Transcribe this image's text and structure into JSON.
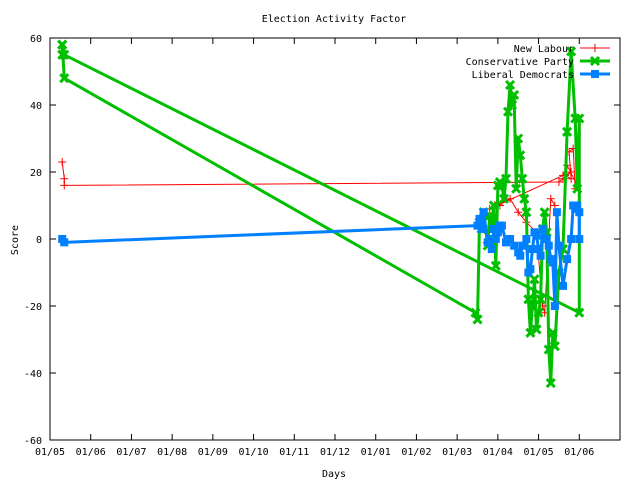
{
  "chart_data": {
    "type": "line",
    "title": "Election Activity Factor",
    "xlabel": "Days",
    "ylabel": "Score",
    "xlim": [
      0,
      14
    ],
    "ylim": [
      -60,
      60
    ],
    "x_ticks": [
      "01/05",
      "01/06",
      "01/07",
      "01/08",
      "01/09",
      "01/10",
      "01/11",
      "01/12",
      "01/01",
      "01/02",
      "01/03",
      "01/04",
      "01/05",
      "01/06"
    ],
    "y_ticks": [
      -60,
      -40,
      -20,
      0,
      20,
      40,
      60
    ],
    "grid": false,
    "legend": "top-right",
    "series": [
      {
        "name": "New Labour",
        "color": "#ff0000",
        "marker": "plus",
        "x": [
          0.3,
          0.35,
          0.35,
          12.5,
          12.6,
          12.8,
          12.65,
          12.8,
          12.75,
          12.85,
          12.9,
          12.95,
          12.7,
          12.6,
          10.8,
          11.0,
          11.05,
          11.1,
          11.3,
          11.5,
          11.7,
          11.95,
          12.1,
          12.15,
          12.3,
          12.4
        ],
        "y": [
          23,
          18,
          16,
          17,
          18,
          20,
          19,
          18,
          26,
          27,
          15,
          16,
          22,
          19,
          9,
          11,
          10,
          11,
          12,
          8,
          5,
          2,
          -20,
          -22,
          12,
          10
        ]
      },
      {
        "name": "Conservative Party",
        "color": "#00c000",
        "marker": "cross",
        "x": [
          0.3,
          0.3,
          0.35,
          10.45,
          10.5,
          10.55,
          10.6,
          10.65,
          10.75,
          10.8,
          10.85,
          10.9,
          10.95,
          11.0,
          11.05,
          11.1,
          11.15,
          11.2,
          11.25,
          11.3,
          11.35,
          11.4,
          11.45,
          11.5,
          11.55,
          11.6,
          11.65,
          11.7,
          11.75,
          11.8,
          11.85,
          11.9,
          11.95,
          12.0,
          12.05,
          12.1,
          12.15,
          12.2,
          12.25,
          12.3,
          12.35,
          12.4,
          12.5,
          12.6,
          12.7,
          12.8,
          12.9,
          12.95,
          13.0,
          13.0,
          0.35,
          0.3
        ],
        "y": [
          55,
          58,
          48,
          -22,
          -24,
          5,
          3,
          8,
          -2,
          7,
          3,
          10,
          -8,
          16,
          17,
          16,
          12,
          18,
          38,
          46,
          40,
          43,
          15,
          30,
          25,
          18,
          12,
          8,
          -18,
          -28,
          -20,
          -12,
          -27,
          -22,
          -18,
          3,
          8,
          2,
          -33,
          -43,
          -28,
          -32,
          -10,
          -3,
          32,
          56,
          36,
          15,
          36,
          -22,
          55,
          58
        ]
      },
      {
        "name": "Liberal Democrats",
        "color": "#0080ff",
        "marker": "square",
        "x": [
          0.3,
          0.35,
          10.5,
          10.55,
          10.6,
          10.65,
          10.75,
          10.8,
          10.85,
          10.9,
          10.95,
          11.0,
          11.05,
          11.1,
          11.2,
          11.3,
          11.4,
          11.5,
          11.55,
          11.6,
          11.7,
          11.75,
          11.8,
          11.85,
          11.9,
          11.95,
          12.0,
          12.05,
          12.1,
          12.2,
          12.25,
          12.3,
          12.35,
          12.4,
          12.45,
          12.5,
          12.6,
          12.7,
          12.8,
          12.85,
          12.9,
          12.95,
          13.0,
          13.0
        ],
        "y": [
          0,
          -1,
          4,
          6,
          3,
          8,
          -1,
          0,
          -3,
          3,
          0,
          2,
          4,
          4,
          -1,
          0,
          -2,
          -4,
          -5,
          -2,
          0,
          -10,
          -9,
          -3,
          2,
          1,
          -3,
          -5,
          3,
          0,
          -2,
          -6,
          -7,
          -20,
          8,
          -2,
          -14,
          -6,
          0,
          10,
          9,
          10,
          8,
          0
        ]
      }
    ]
  }
}
